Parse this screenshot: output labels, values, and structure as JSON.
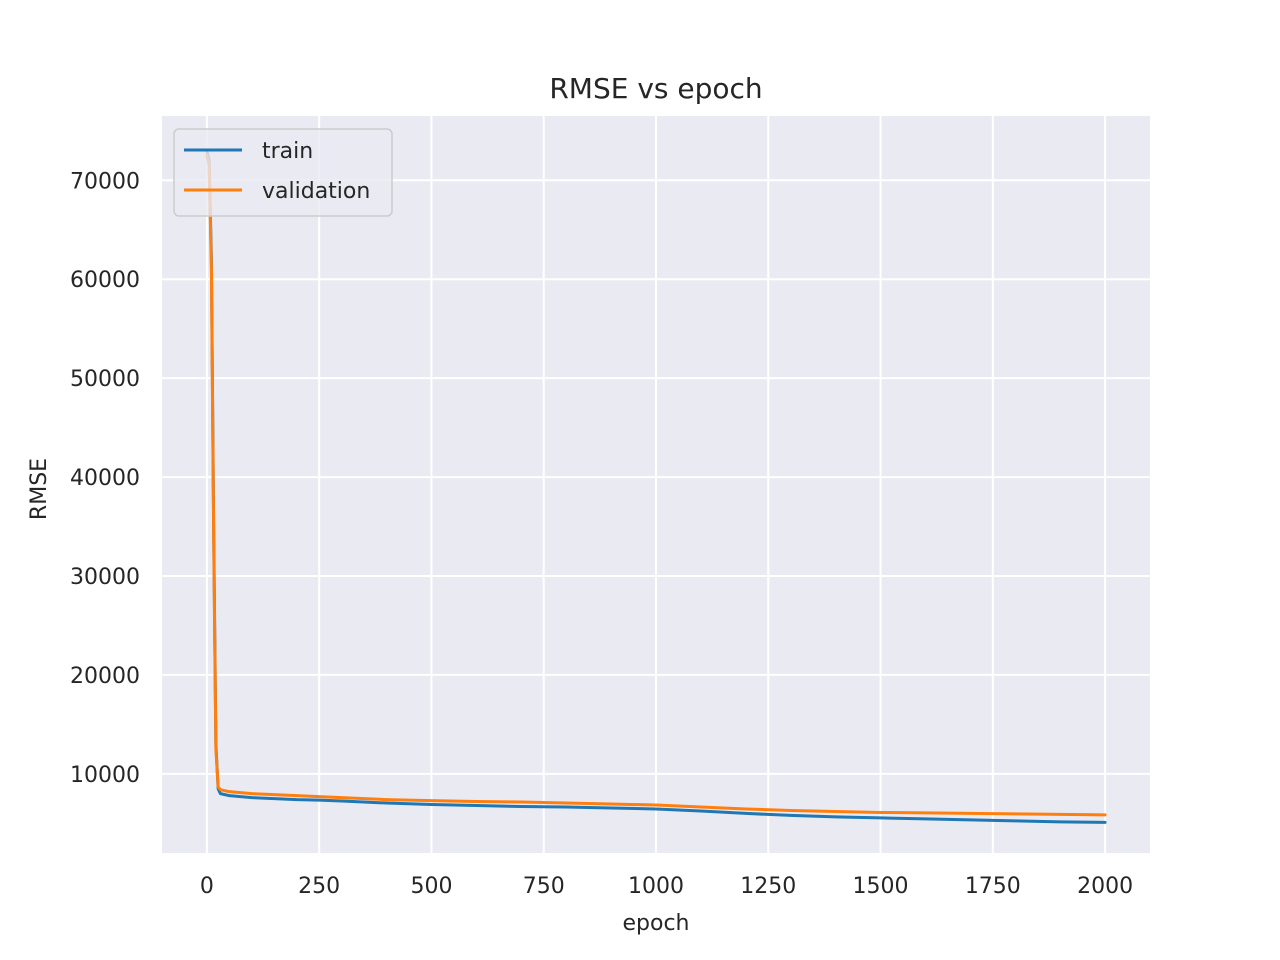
{
  "chart_data": {
    "type": "line",
    "title": "RMSE vs epoch",
    "xlabel": "epoch",
    "ylabel": "RMSE",
    "xlim": [
      -100,
      2100
    ],
    "ylim": [
      2000,
      76500
    ],
    "xticks": [
      0,
      250,
      500,
      750,
      1000,
      1250,
      1500,
      1750,
      2000
    ],
    "yticks": [
      10000,
      20000,
      30000,
      40000,
      50000,
      60000,
      70000
    ],
    "grid": true,
    "legend_position": "top-left",
    "background": "#eaeaf2",
    "series": [
      {
        "name": "train",
        "color": "#1f77b4",
        "x": [
          0,
          5,
          10,
          15,
          20,
          25,
          30,
          40,
          50,
          75,
          100,
          150,
          200,
          250,
          300,
          400,
          500,
          600,
          700,
          800,
          900,
          1000,
          1100,
          1200,
          1300,
          1400,
          1500,
          1600,
          1700,
          1800,
          1900,
          2000
        ],
        "y": [
          73000,
          72000,
          62000,
          35000,
          13000,
          8500,
          8000,
          7900,
          7800,
          7700,
          7600,
          7500,
          7400,
          7350,
          7250,
          7050,
          6900,
          6800,
          6700,
          6650,
          6550,
          6450,
          6250,
          6000,
          5800,
          5650,
          5550,
          5450,
          5350,
          5250,
          5150,
          5100
        ]
      },
      {
        "name": "validation",
        "color": "#ff7f0e",
        "x": [
          0,
          5,
          10,
          15,
          20,
          25,
          30,
          40,
          50,
          75,
          100,
          150,
          200,
          250,
          300,
          400,
          500,
          600,
          700,
          800,
          900,
          1000,
          1100,
          1200,
          1300,
          1400,
          1500,
          1600,
          1700,
          1800,
          1900,
          2000
        ],
        "y": [
          72500,
          71500,
          61000,
          34000,
          12500,
          8700,
          8400,
          8300,
          8200,
          8100,
          8000,
          7900,
          7800,
          7700,
          7600,
          7400,
          7300,
          7200,
          7150,
          7050,
          6950,
          6850,
          6650,
          6450,
          6300,
          6200,
          6100,
          6050,
          6000,
          5950,
          5900,
          5850
        ]
      }
    ]
  }
}
